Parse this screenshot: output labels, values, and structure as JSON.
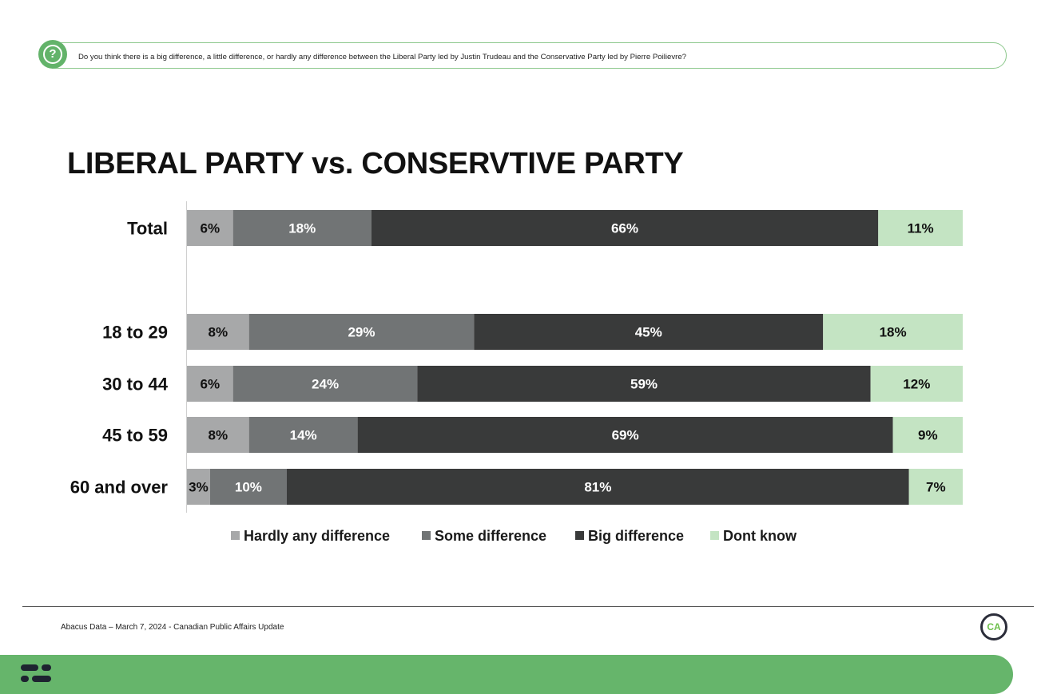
{
  "question": {
    "icon": "question-mark-icon",
    "icon_glyph": "?",
    "text": "Do you think there is a big difference, a little difference, or hardly any difference between the Liberal Party led by Justin Trudeau and the Conservative Party led by Pierre Poilievre?"
  },
  "title": "LIBERAL PARTY vs. CONSERVTIVE PARTY",
  "chart_data": {
    "type": "bar",
    "orientation": "horizontal",
    "stacked": true,
    "categories": [
      "Total",
      "18 to 29",
      "30 to 44",
      "45 to 59",
      "60 and over"
    ],
    "series": [
      {
        "name": "Hardly any difference",
        "color": "#a7a8a9",
        "text_color": "#111111",
        "values": [
          6,
          8,
          6,
          8,
          3
        ],
        "labels": [
          "6%",
          "8%",
          "6%",
          "8%",
          "3%"
        ]
      },
      {
        "name": "Some difference",
        "color": "#717475",
        "text_color": "#ffffff",
        "values": [
          18,
          29,
          24,
          14,
          10
        ],
        "labels": [
          "18%",
          "29%",
          "24%",
          "14%",
          "10%"
        ]
      },
      {
        "name": "Big difference",
        "color": "#393a3a",
        "text_color": "#ffffff",
        "values": [
          66,
          45,
          59,
          69,
          81
        ],
        "labels": [
          "66%",
          "45%",
          "59%",
          "69%",
          "81%"
        ]
      },
      {
        "name": "Dont know",
        "color": "#c4e4c3",
        "text_color": "#111111",
        "values": [
          11,
          18,
          12,
          9,
          7
        ],
        "labels": [
          "11%",
          "18%",
          "12%",
          "9%",
          "7%"
        ]
      }
    ],
    "xlim": [
      0,
      100
    ],
    "grid": false,
    "legend_position": "bottom"
  },
  "footer": {
    "source": "Abacus Data – March 7, 2024 - Canadian Public Affairs Update",
    "logo_text": "CA",
    "brand_icon": "abacus-logo-icon"
  },
  "colors": {
    "accent": "#66b56b",
    "question_border": "#8cc88c",
    "logo_ring": "#2b2d3a",
    "logo_text": "#6cbf4a"
  }
}
